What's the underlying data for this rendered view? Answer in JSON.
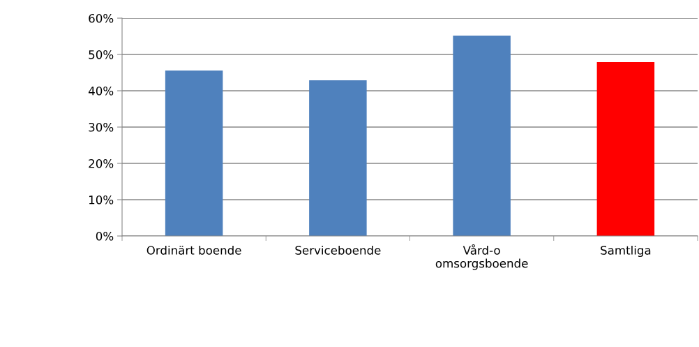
{
  "chart_data": {
    "type": "bar",
    "categories": [
      "Ordinärt boende",
      "Serviceboende",
      "Vård-o\nomsorgsboende",
      "Samtliga"
    ],
    "values": [
      45.6,
      42.9,
      55.2,
      47.9
    ],
    "colors": [
      "#4f81bd",
      "#4f81bd",
      "#4f81bd",
      "#ff0000"
    ],
    "ylim": [
      0,
      60
    ],
    "yticks": [
      {
        "value": 0,
        "label": "0%"
      },
      {
        "value": 10,
        "label": "10%"
      },
      {
        "value": 20,
        "label": "20%"
      },
      {
        "value": 30,
        "label": "30%"
      },
      {
        "value": 40,
        "label": "40%"
      },
      {
        "value": 50,
        "label": "50%"
      },
      {
        "value": 60,
        "label": "60%"
      }
    ],
    "grid": "y",
    "legend": false
  }
}
